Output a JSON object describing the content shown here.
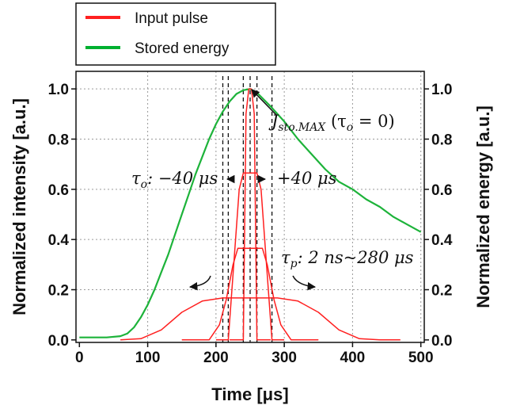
{
  "chart_data": {
    "type": "line",
    "xlabel": "Time [μs]",
    "ylabel_left": "Normalized intensity [a.u.]",
    "ylabel_right": "Normalized energy [a.u.]",
    "xlim": [
      -5,
      505
    ],
    "ylim": [
      -0.01,
      1.07
    ],
    "y2lim": [
      -0.01,
      1.07
    ],
    "x_ticks": [
      0,
      100,
      200,
      300,
      400,
      500
    ],
    "y_ticks": [
      0.0,
      0.2,
      0.4,
      0.6,
      0.8,
      1.0
    ],
    "y2_ticks": [
      0.0,
      0.2,
      0.4,
      0.6,
      0.8,
      1.0
    ],
    "x_tick_labels": [
      "0",
      "100",
      "200",
      "300",
      "400",
      "500"
    ],
    "y_tick_labels": [
      "0.0",
      "0.2",
      "0.4",
      "0.6",
      "0.8",
      "1.0"
    ],
    "y2_tick_labels": [
      "0.0",
      "0.2",
      "0.4",
      "0.6",
      "0.8",
      "1.0"
    ],
    "grid": true,
    "legend_position": "top-left",
    "legend": [
      {
        "label": "Input pulse",
        "color": "#ff2020"
      },
      {
        "label": "Stored energy",
        "color": "#00b030"
      }
    ],
    "series": [
      {
        "name": "Stored energy",
        "color": "#1db33a",
        "axis": "right",
        "x": [
          0,
          40,
          60,
          70,
          80,
          90,
          100,
          110,
          120,
          130,
          140,
          150,
          160,
          170,
          180,
          190,
          200,
          210,
          220,
          230,
          240,
          250,
          260,
          280,
          300,
          320,
          340,
          360,
          380,
          400,
          420,
          440,
          460,
          480,
          500
        ],
        "y": [
          0.01,
          0.01,
          0.015,
          0.025,
          0.05,
          0.09,
          0.14,
          0.2,
          0.27,
          0.34,
          0.42,
          0.5,
          0.58,
          0.66,
          0.73,
          0.8,
          0.86,
          0.91,
          0.95,
          0.98,
          0.995,
          1.0,
          0.985,
          0.93,
          0.87,
          0.8,
          0.74,
          0.68,
          0.63,
          0.6,
          0.56,
          0.53,
          0.49,
          0.46,
          0.43
        ]
      },
      {
        "name": "",
        "color": "#ff2020",
        "axis": "left",
        "x": [
          220,
          240,
          244,
          248,
          252,
          256,
          260,
          280
        ],
        "y": [
          0.0,
          0.0,
          0.9,
          1.0,
          1.0,
          0.9,
          0.0,
          0.0
        ]
      },
      {
        "name": "",
        "color": "#ff2020",
        "axis": "left",
        "x": [
          200,
          218,
          226,
          234,
          240,
          260,
          266,
          274,
          282,
          300
        ],
        "y": [
          0.0,
          0.0,
          0.3,
          0.6,
          0.665,
          0.665,
          0.6,
          0.3,
          0.0,
          0.0
        ]
      },
      {
        "name": "",
        "color": "#ff2020",
        "axis": "left",
        "x": [
          150,
          190,
          205,
          215,
          225,
          232,
          268,
          275,
          285,
          295,
          310,
          350
        ],
        "y": [
          0.0,
          0.0,
          0.06,
          0.16,
          0.3,
          0.365,
          0.365,
          0.3,
          0.16,
          0.06,
          0.0,
          0.0
        ]
      },
      {
        "name": "",
        "color": "#ff2020",
        "axis": "left",
        "x": [
          60,
          90,
          120,
          150,
          180,
          210,
          250,
          290,
          320,
          350,
          380,
          410,
          440,
          470
        ],
        "y": [
          0.0,
          0.005,
          0.04,
          0.11,
          0.155,
          0.167,
          0.167,
          0.167,
          0.155,
          0.11,
          0.04,
          0.005,
          0.0,
          0.0
        ]
      }
    ],
    "vertical_dashed_lines_x": [
      210,
      218,
      240,
      250,
      260,
      282
    ],
    "annotations": {
      "peak_label_symbol": "J",
      "peak_label_sub": "sto.MAX",
      "peak_label_suffix": " (τ",
      "peak_label_suffix_sub": "o",
      "peak_label_end": " = 0)",
      "offset_label_sym": "τ",
      "offset_label_sub": "o",
      "offset_label_neg": ": −40 μs",
      "offset_label_pos": "+40 μs",
      "width_label_sym": "τ",
      "width_label_sub": "p",
      "width_label_text": ": 2 ns~280 μs"
    }
  }
}
